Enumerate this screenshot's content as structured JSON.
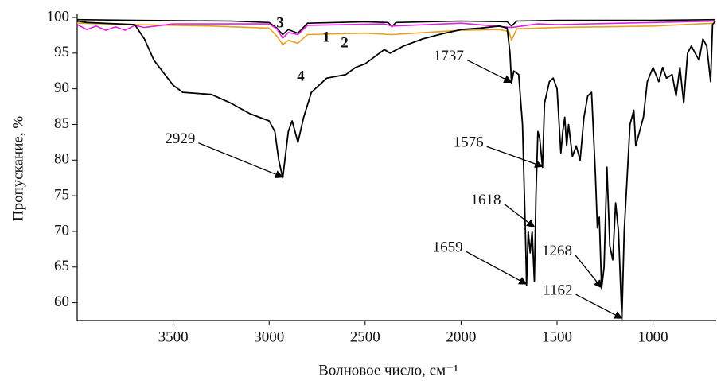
{
  "chart_data": {
    "type": "line",
    "x_label": "Волновое число, см⁻¹",
    "y_label": "Пропускание, %",
    "xlim": [
      4000,
      675
    ],
    "ylim": [
      57.5,
      100
    ],
    "xticks": [
      3500,
      3000,
      2500,
      2000,
      1500,
      1000
    ],
    "yticks": [
      60,
      65,
      70,
      75,
      80,
      85,
      90,
      95,
      100
    ],
    "grid": false,
    "series": [
      {
        "name": "1",
        "color": "#000000",
        "x": [
          4000,
          3700,
          3200,
          3000,
          2960,
          2929,
          2900,
          2850,
          2800,
          2500,
          2380,
          2360,
          2340,
          2000,
          1760,
          1737,
          1710,
          1500,
          1000,
          675
        ],
        "values": [
          99.7,
          99.6,
          99.5,
          99.3,
          98.5,
          97.6,
          98.3,
          97.8,
          99.2,
          99.4,
          99.3,
          98.7,
          99.3,
          99.5,
          99.4,
          98.8,
          99.5,
          99.6,
          99.6,
          99.7
        ]
      },
      {
        "name": "2",
        "color": "#e8a020",
        "x": [
          4000,
          3700,
          3300,
          3000,
          2960,
          2929,
          2900,
          2850,
          2800,
          2500,
          2360,
          2000,
          1800,
          1750,
          1737,
          1710,
          1600,
          1500,
          1000,
          675
        ],
        "values": [
          99.2,
          99.0,
          98.8,
          98.5,
          97.4,
          96.2,
          96.8,
          96.4,
          97.6,
          97.8,
          97.6,
          98.2,
          98.3,
          98.0,
          96.8,
          98.4,
          98.5,
          98.6,
          98.8,
          99.2
        ]
      },
      {
        "name": "3",
        "color": "#e020e0",
        "x": [
          4000,
          3950,
          3900,
          3850,
          3800,
          3750,
          3700,
          3650,
          3500,
          3000,
          2960,
          2929,
          2900,
          2850,
          2800,
          2400,
          2360,
          2000,
          1737,
          1600,
          1500,
          1000,
          675
        ],
        "values": [
          99.0,
          98.3,
          98.8,
          98.2,
          98.7,
          98.2,
          98.9,
          98.6,
          99.1,
          99.1,
          98.4,
          97.1,
          97.9,
          97.6,
          98.9,
          99.1,
          98.8,
          99.2,
          98.6,
          99.1,
          99.0,
          99.3,
          99.5
        ]
      },
      {
        "name": "4",
        "color": "#000000",
        "x": [
          4000,
          3950,
          3700,
          3650,
          3600,
          3500,
          3450,
          3300,
          3200,
          3100,
          3050,
          3000,
          2970,
          2950,
          2929,
          2900,
          2880,
          2850,
          2820,
          2780,
          2700,
          2600,
          2550,
          2500,
          2450,
          2400,
          2370,
          2300,
          2200,
          2100,
          2000,
          1900,
          1800,
          1760,
          1745,
          1737,
          1725,
          1700,
          1680,
          1665,
          1659,
          1650,
          1640,
          1630,
          1618,
          1610,
          1600,
          1590,
          1576,
          1565,
          1540,
          1520,
          1500,
          1480,
          1470,
          1460,
          1450,
          1440,
          1420,
          1400,
          1380,
          1360,
          1340,
          1320,
          1300,
          1290,
          1280,
          1268,
          1255,
          1240,
          1225,
          1210,
          1195,
          1180,
          1162,
          1150,
          1120,
          1100,
          1090,
          1070,
          1050,
          1030,
          1000,
          970,
          950,
          930,
          900,
          880,
          860,
          840,
          820,
          800,
          760,
          740,
          720,
          700,
          690,
          675
        ],
        "values": [
          99.5,
          99.3,
          99.0,
          97.0,
          94.0,
          90.5,
          89.5,
          89.2,
          88.0,
          86.5,
          86.0,
          85.5,
          84.0,
          80.0,
          77.5,
          84.0,
          85.5,
          82.5,
          86.0,
          89.5,
          91.5,
          92.0,
          93.0,
          93.5,
          94.5,
          95.5,
          95.0,
          96.0,
          97.0,
          97.7,
          98.3,
          98.5,
          98.8,
          98.5,
          95.0,
          90.8,
          92.5,
          92.0,
          85.0,
          70.0,
          62.5,
          70.0,
          67.0,
          70.0,
          63.0,
          75.0,
          84.0,
          83.0,
          79.0,
          88.0,
          91.0,
          91.5,
          90.0,
          81.0,
          84.0,
          86.0,
          82.0,
          85.0,
          80.5,
          82.0,
          80.0,
          86.0,
          89.0,
          89.5,
          78.0,
          70.5,
          72.0,
          62.0,
          65.0,
          79.0,
          68.0,
          66.0,
          74.0,
          70.0,
          57.7,
          70.0,
          85.0,
          87.0,
          82.0,
          84.0,
          86.0,
          91.0,
          93.0,
          91.0,
          93.0,
          91.5,
          92.0,
          89.0,
          93.0,
          88.0,
          95.0,
          96.0,
          94.0,
          97.0,
          96.0,
          91.0,
          99.0,
          99.5
        ]
      }
    ],
    "annotations": [
      {
        "text": "2929",
        "x": 2929,
        "y": 77.5
      },
      {
        "text": "1737",
        "x": 1737,
        "y": 90.8
      },
      {
        "text": "1576",
        "x": 1576,
        "y": 79
      },
      {
        "text": "1618",
        "x": 1618,
        "y": 70.5
      },
      {
        "text": "1659",
        "x": 1659,
        "y": 62.5
      },
      {
        "text": "1268",
        "x": 1268,
        "y": 62
      },
      {
        "text": "1162",
        "x": 1162,
        "y": 57.7
      }
    ]
  }
}
